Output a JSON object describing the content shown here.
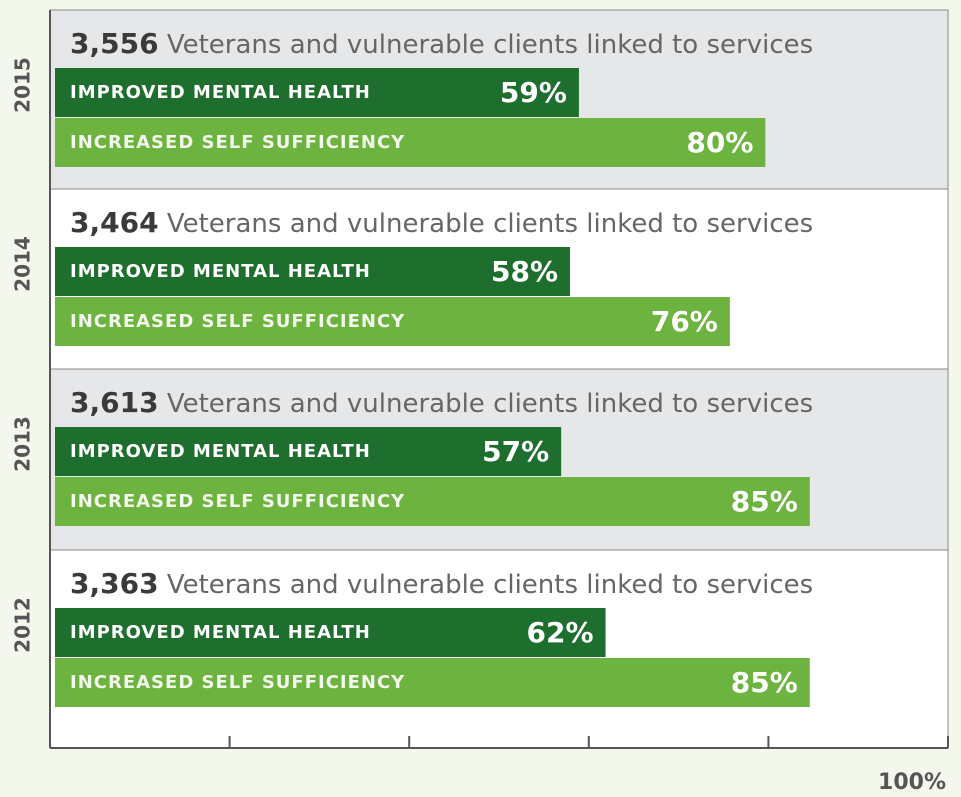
{
  "chart_data": {
    "type": "bar",
    "categories": [
      "2015",
      "2014",
      "2013",
      "2012"
    ],
    "clients": {
      "values": [
        3556,
        3464,
        3613,
        3363
      ],
      "value_labels": [
        "3,556",
        "3,464",
        "3,613",
        "3,363"
      ]
    },
    "caption": "Veterans and vulnerable clients linked to services",
    "series": [
      {
        "name": "IMPROVED MENTAL HEALTH",
        "color": "#1e6e2d",
        "values": [
          59,
          58,
          57,
          62
        ],
        "value_labels": [
          "59%",
          "58%",
          "57%",
          "62%"
        ]
      },
      {
        "name": "INCREASED SELF SUFFICIENCY",
        "color": "#6db33f",
        "values": [
          80,
          76,
          85,
          85
        ],
        "value_labels": [
          "80%",
          "76%",
          "85%",
          "85%"
        ]
      }
    ],
    "xlim": [
      0,
      100
    ],
    "xticks": [
      {
        "value": 0,
        "label": null
      },
      {
        "value": 20,
        "label": null
      },
      {
        "value": 40,
        "label": null
      },
      {
        "value": 60,
        "label": null
      },
      {
        "value": 80,
        "label": null
      },
      {
        "value": 100,
        "label": "100%"
      }
    ]
  }
}
